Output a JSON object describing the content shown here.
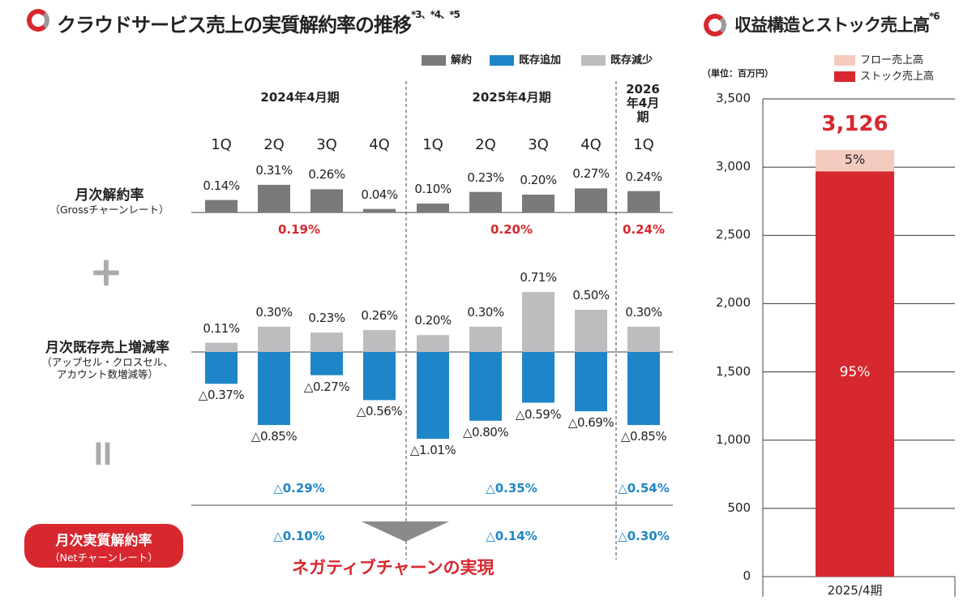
{
  "left_title": "クラウドサービス売上の実質解約率の推移",
  "left_title_sup": "*3、*4、*5",
  "legend": [
    {
      "label": "解約",
      "color": "#7a7a7a"
    },
    {
      "label": "既存追加",
      "color": "#1e86c8"
    },
    {
      "label": "既存減少",
      "color": "#bcbdbf"
    }
  ],
  "periods": [
    {
      "label": "2024年4月期"
    },
    {
      "label": "2025年4月期"
    },
    {
      "label": "2026年4月期"
    }
  ],
  "quarters": [
    "1Q",
    "2Q",
    "3Q",
    "4Q",
    "1Q",
    "2Q",
    "3Q",
    "4Q",
    "1Q"
  ],
  "row_labels": {
    "churn_title": "月次解約率",
    "churn_sub": "（Grossチャーンレート）",
    "plus": "+",
    "existing_title": "月次既存売上増減率",
    "existing_sub1": "（アップセル・クロスセル、",
    "existing_sub2": "アカウント数増減等）",
    "equals": "II",
    "net_title": "月次実質解約率",
    "net_sub": "（Netチャーンレート）"
  },
  "chart_data": [
    {
      "type": "bar",
      "title": "クラウドサービス売上の実質解約率の推移",
      "categories": [
        "2024年4月期 1Q",
        "2024年4月期 2Q",
        "2024年4月期 3Q",
        "2024年4月期 4Q",
        "2025年4月期 1Q",
        "2025年4月期 2Q",
        "2025年4月期 3Q",
        "2025年4月期 4Q",
        "2026年4月期 1Q"
      ],
      "series": [
        {
          "name": "解約",
          "values": [
            0.14,
            0.31,
            0.26,
            0.04,
            0.1,
            0.23,
            0.2,
            0.27,
            0.24
          ],
          "labels": [
            "0.14%",
            "0.31%",
            "0.26%",
            "0.04%",
            "0.10%",
            "0.23%",
            "0.20%",
            "0.27%",
            "0.24%"
          ],
          "color": "#7a7a7a"
        },
        {
          "name": "既存減少",
          "values": [
            0.11,
            0.3,
            0.23,
            0.26,
            0.2,
            0.3,
            0.71,
            0.5,
            0.3
          ],
          "labels": [
            "0.11%",
            "0.30%",
            "0.23%",
            "0.26%",
            "0.20%",
            "0.30%",
            "0.71%",
            "0.50%",
            "0.30%"
          ],
          "color": "#bcbdbf"
        },
        {
          "name": "既存追加",
          "values": [
            -0.37,
            -0.85,
            -0.27,
            -0.56,
            -1.01,
            -0.8,
            -0.59,
            -0.69,
            -0.85
          ],
          "labels": [
            "△0.37%",
            "△0.85%",
            "△0.27%",
            "△0.56%",
            "△1.01%",
            "△0.80%",
            "△0.59%",
            "△0.69%",
            "△0.85%"
          ],
          "color": "#1e86c8"
        }
      ],
      "period_averages": {
        "churn": [
          "0.19%",
          "0.20%",
          "0.24%"
        ],
        "existing": [
          "△0.29%",
          "△0.35%",
          "△0.54%"
        ],
        "net": [
          "△0.10%",
          "△0.14%",
          "△0.30%"
        ]
      }
    },
    {
      "type": "bar",
      "title": "収益構造とストック売上高",
      "unit": "（単位：百万円）",
      "categories": [
        "2025/4期"
      ],
      "total": 3126,
      "total_label": "3,126",
      "series": [
        {
          "name": "フロー売上高",
          "share_label": "5%",
          "color": "#f6cbbf"
        },
        {
          "name": "ストック売上高",
          "share_label": "95%",
          "color": "#d7282f"
        }
      ],
      "ylim": [
        0,
        3500
      ],
      "yticks": [
        0,
        500,
        1000,
        1500,
        2000,
        2500,
        3000,
        3500
      ],
      "ytick_labels": [
        "0",
        "500",
        "1,000",
        "1,500",
        "2,000",
        "2,500",
        "3,000",
        "3,500"
      ]
    }
  ],
  "conclusion": "ネガティブチャーンの実現",
  "right_title": "収益構造とストック売上高",
  "right_title_sup": "*6"
}
